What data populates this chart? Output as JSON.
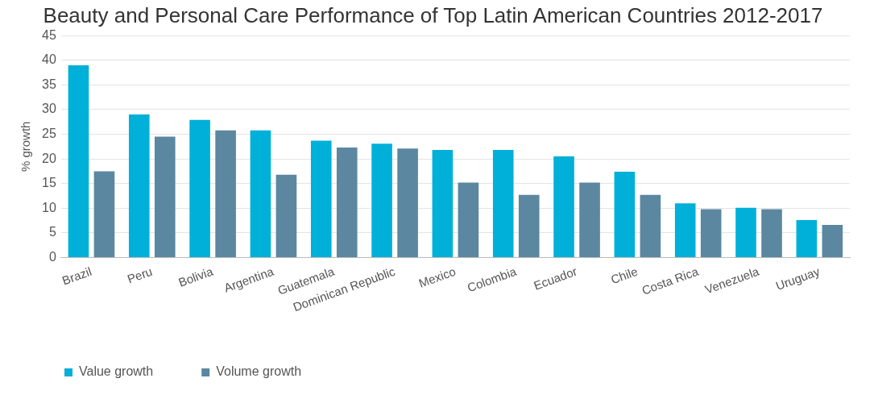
{
  "chart_data": {
    "type": "bar",
    "title": "Beauty and Personal Care Performance of Top Latin American Countries 2012-2017",
    "ylabel": "% growth",
    "categories": [
      "Brazil",
      "Peru",
      "Bolivia",
      "Argentina",
      "Guatemala",
      "Dominican Republic",
      "Mexico",
      "Colombia",
      "Ecuador",
      "Chile",
      "Costa Rica",
      "Venezuela",
      "Uruguay"
    ],
    "series": [
      {
        "name": "Value growth",
        "color": "#00b0d8",
        "values": [
          39,
          29,
          27.9,
          25.8,
          23.7,
          23.1,
          21.8,
          21.8,
          20.5,
          17.4,
          11,
          10.1,
          7.6
        ]
      },
      {
        "name": "Volume growth",
        "color": "#5b87a0",
        "values": [
          17.5,
          24.5,
          25.8,
          16.8,
          22.3,
          22.1,
          15.2,
          12.7,
          15.2,
          12.7,
          9.8,
          9.8,
          6.6
        ]
      }
    ],
    "ylim": [
      0,
      45
    ],
    "yticks": [
      0,
      5,
      10,
      15,
      20,
      25,
      30,
      35,
      40,
      45
    ],
    "grid": "y",
    "legend": "bottom"
  }
}
